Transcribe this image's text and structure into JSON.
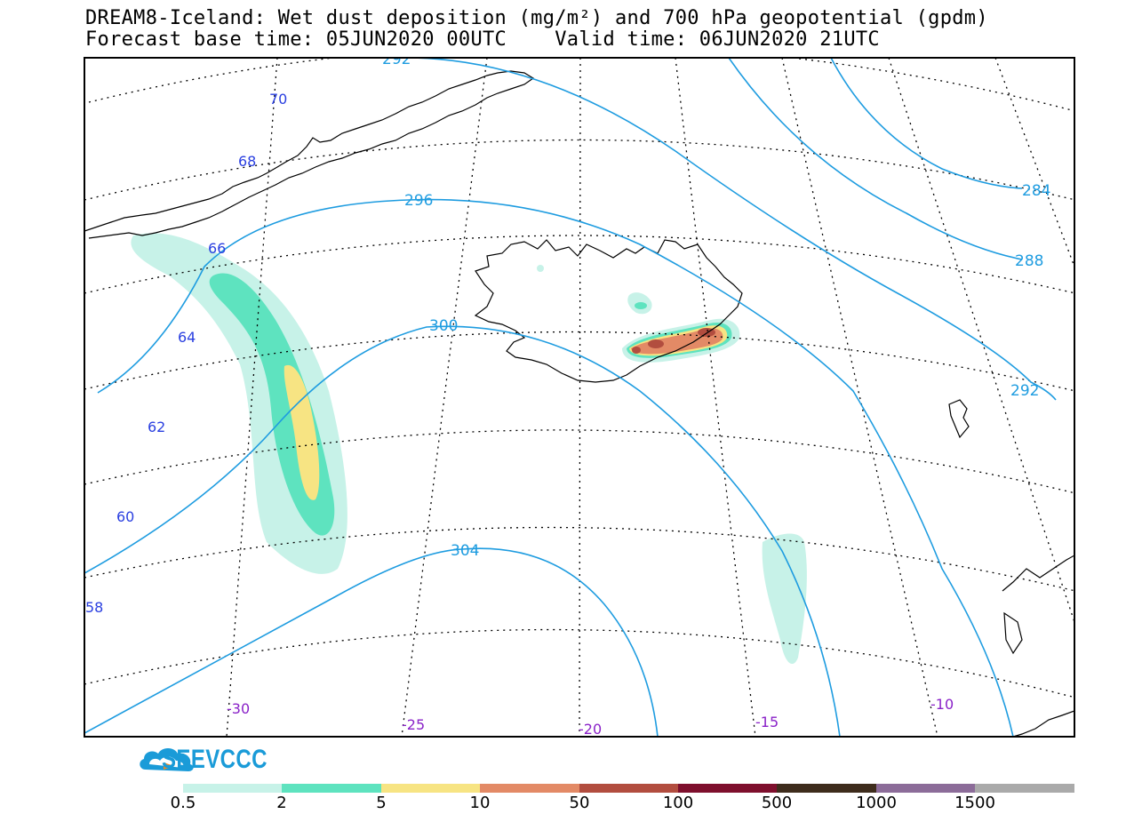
{
  "title": {
    "line1": "DREAM8-Iceland: Wet dust deposition (mg/m²) and 700 hPa geopotential (gpdm)",
    "line2": "Forecast base time: 05JUN2020 00UTC    Valid time: 06JUN2020 21UTC"
  },
  "logo": {
    "text": "SEEVCCC",
    "icon": "cloud-arrow-icon"
  },
  "contour_labels": [
    "292",
    "296",
    "300",
    "304",
    "284",
    "288",
    "292"
  ],
  "latitude_labels": [
    "70",
    "68",
    "66",
    "64",
    "62",
    "60",
    "58"
  ],
  "longitude_labels": [
    "-30",
    "-25",
    "-20",
    "-15",
    "-10"
  ],
  "colorbar": {
    "colors": [
      "#c7f2e8",
      "#5ee3bf",
      "#f7e483",
      "#e38a66",
      "#b24d3f",
      "#7e0f2d",
      "#3e2c1c",
      "#8c6c99",
      "#aaaaaa"
    ],
    "labels": [
      "0.5",
      "2",
      "5",
      "10",
      "50",
      "100",
      "500",
      "1000",
      "1500"
    ]
  },
  "colors": {
    "contour": "#1e9ce0",
    "lat_label": "#2a3fe0",
    "lon_label": "#8a22c8",
    "coast": "#000000"
  }
}
